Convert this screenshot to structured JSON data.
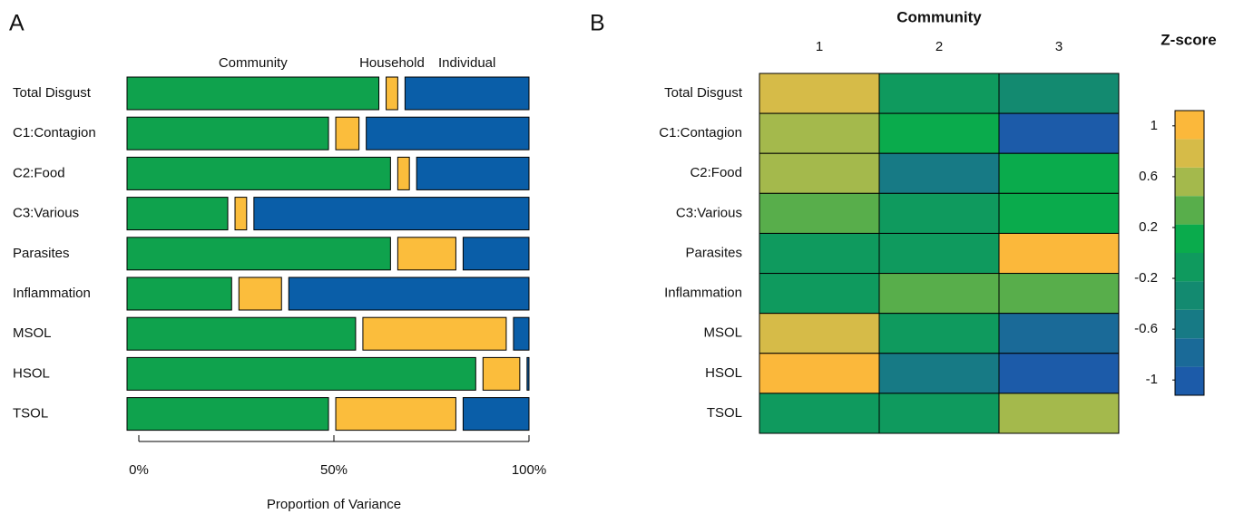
{
  "chart_data": [
    {
      "type": "stacked_bar_horizontal",
      "panel_label": "A",
      "categories": [
        "Total Disgust",
        "C1:Contagion",
        "C2:Food",
        "C3:Various",
        "Parasites",
        "Inflammation",
        "MSOL",
        "HSOL",
        "TSOL"
      ],
      "series": [
        {
          "name": "Community",
          "color": "#0fa24d",
          "values": [
            65,
            52,
            68,
            26,
            68,
            27,
            59,
            90,
            52
          ]
        },
        {
          "name": "Household",
          "color": "#fbbd3c",
          "values": [
            3,
            6,
            3,
            3,
            15,
            11,
            37,
            9.5,
            31
          ]
        },
        {
          "name": "Individual",
          "color": "#0a5ea8",
          "values": [
            32,
            42,
            29,
            71,
            17,
            62,
            4,
            0.5,
            17
          ]
        }
      ],
      "xlim": [
        0,
        100
      ],
      "xticks": [
        {
          "value": 0,
          "label": "0%"
        },
        {
          "value": 50,
          "label": "50%"
        },
        {
          "value": 100,
          "label": "100%"
        }
      ],
      "xlabel": "Proportion of Variance"
    },
    {
      "type": "heatmap",
      "panel_label": "B",
      "title": "Community",
      "categories": [
        "1",
        "2",
        "3"
      ],
      "rows": [
        "Total Disgust",
        "C1:Contagion",
        "C2:Food",
        "C3:Various",
        "Parasites",
        "Inflammation",
        "MSOL",
        "HSOL",
        "TSOL"
      ],
      "values": [
        [
          0.8,
          -0.15,
          -0.4
        ],
        [
          0.55,
          0.1,
          -1.05
        ],
        [
          0.55,
          -0.6,
          0.1
        ],
        [
          0.3,
          -0.15,
          0.1
        ],
        [
          -0.15,
          -0.15,
          1.05
        ],
        [
          -0.15,
          0.3,
          0.3
        ],
        [
          0.8,
          -0.15,
          -0.85
        ],
        [
          1.05,
          -0.6,
          -1.05
        ],
        [
          -0.15,
          -0.15,
          0.55
        ]
      ],
      "colorbar_title": "Z-score",
      "zlim": [
        -1.12,
        1.12
      ],
      "zticks": [
        1,
        0.6,
        0.2,
        -0.2,
        -0.6,
        -1
      ],
      "colors": [
        "#1c5ba9",
        "#1a6a98",
        "#177a85",
        "#138a70",
        "#0f9a5e",
        "#0aab4c",
        "#58ae4b",
        "#a4b94c",
        "#d6bb48",
        "#fbb83b"
      ]
    }
  ]
}
